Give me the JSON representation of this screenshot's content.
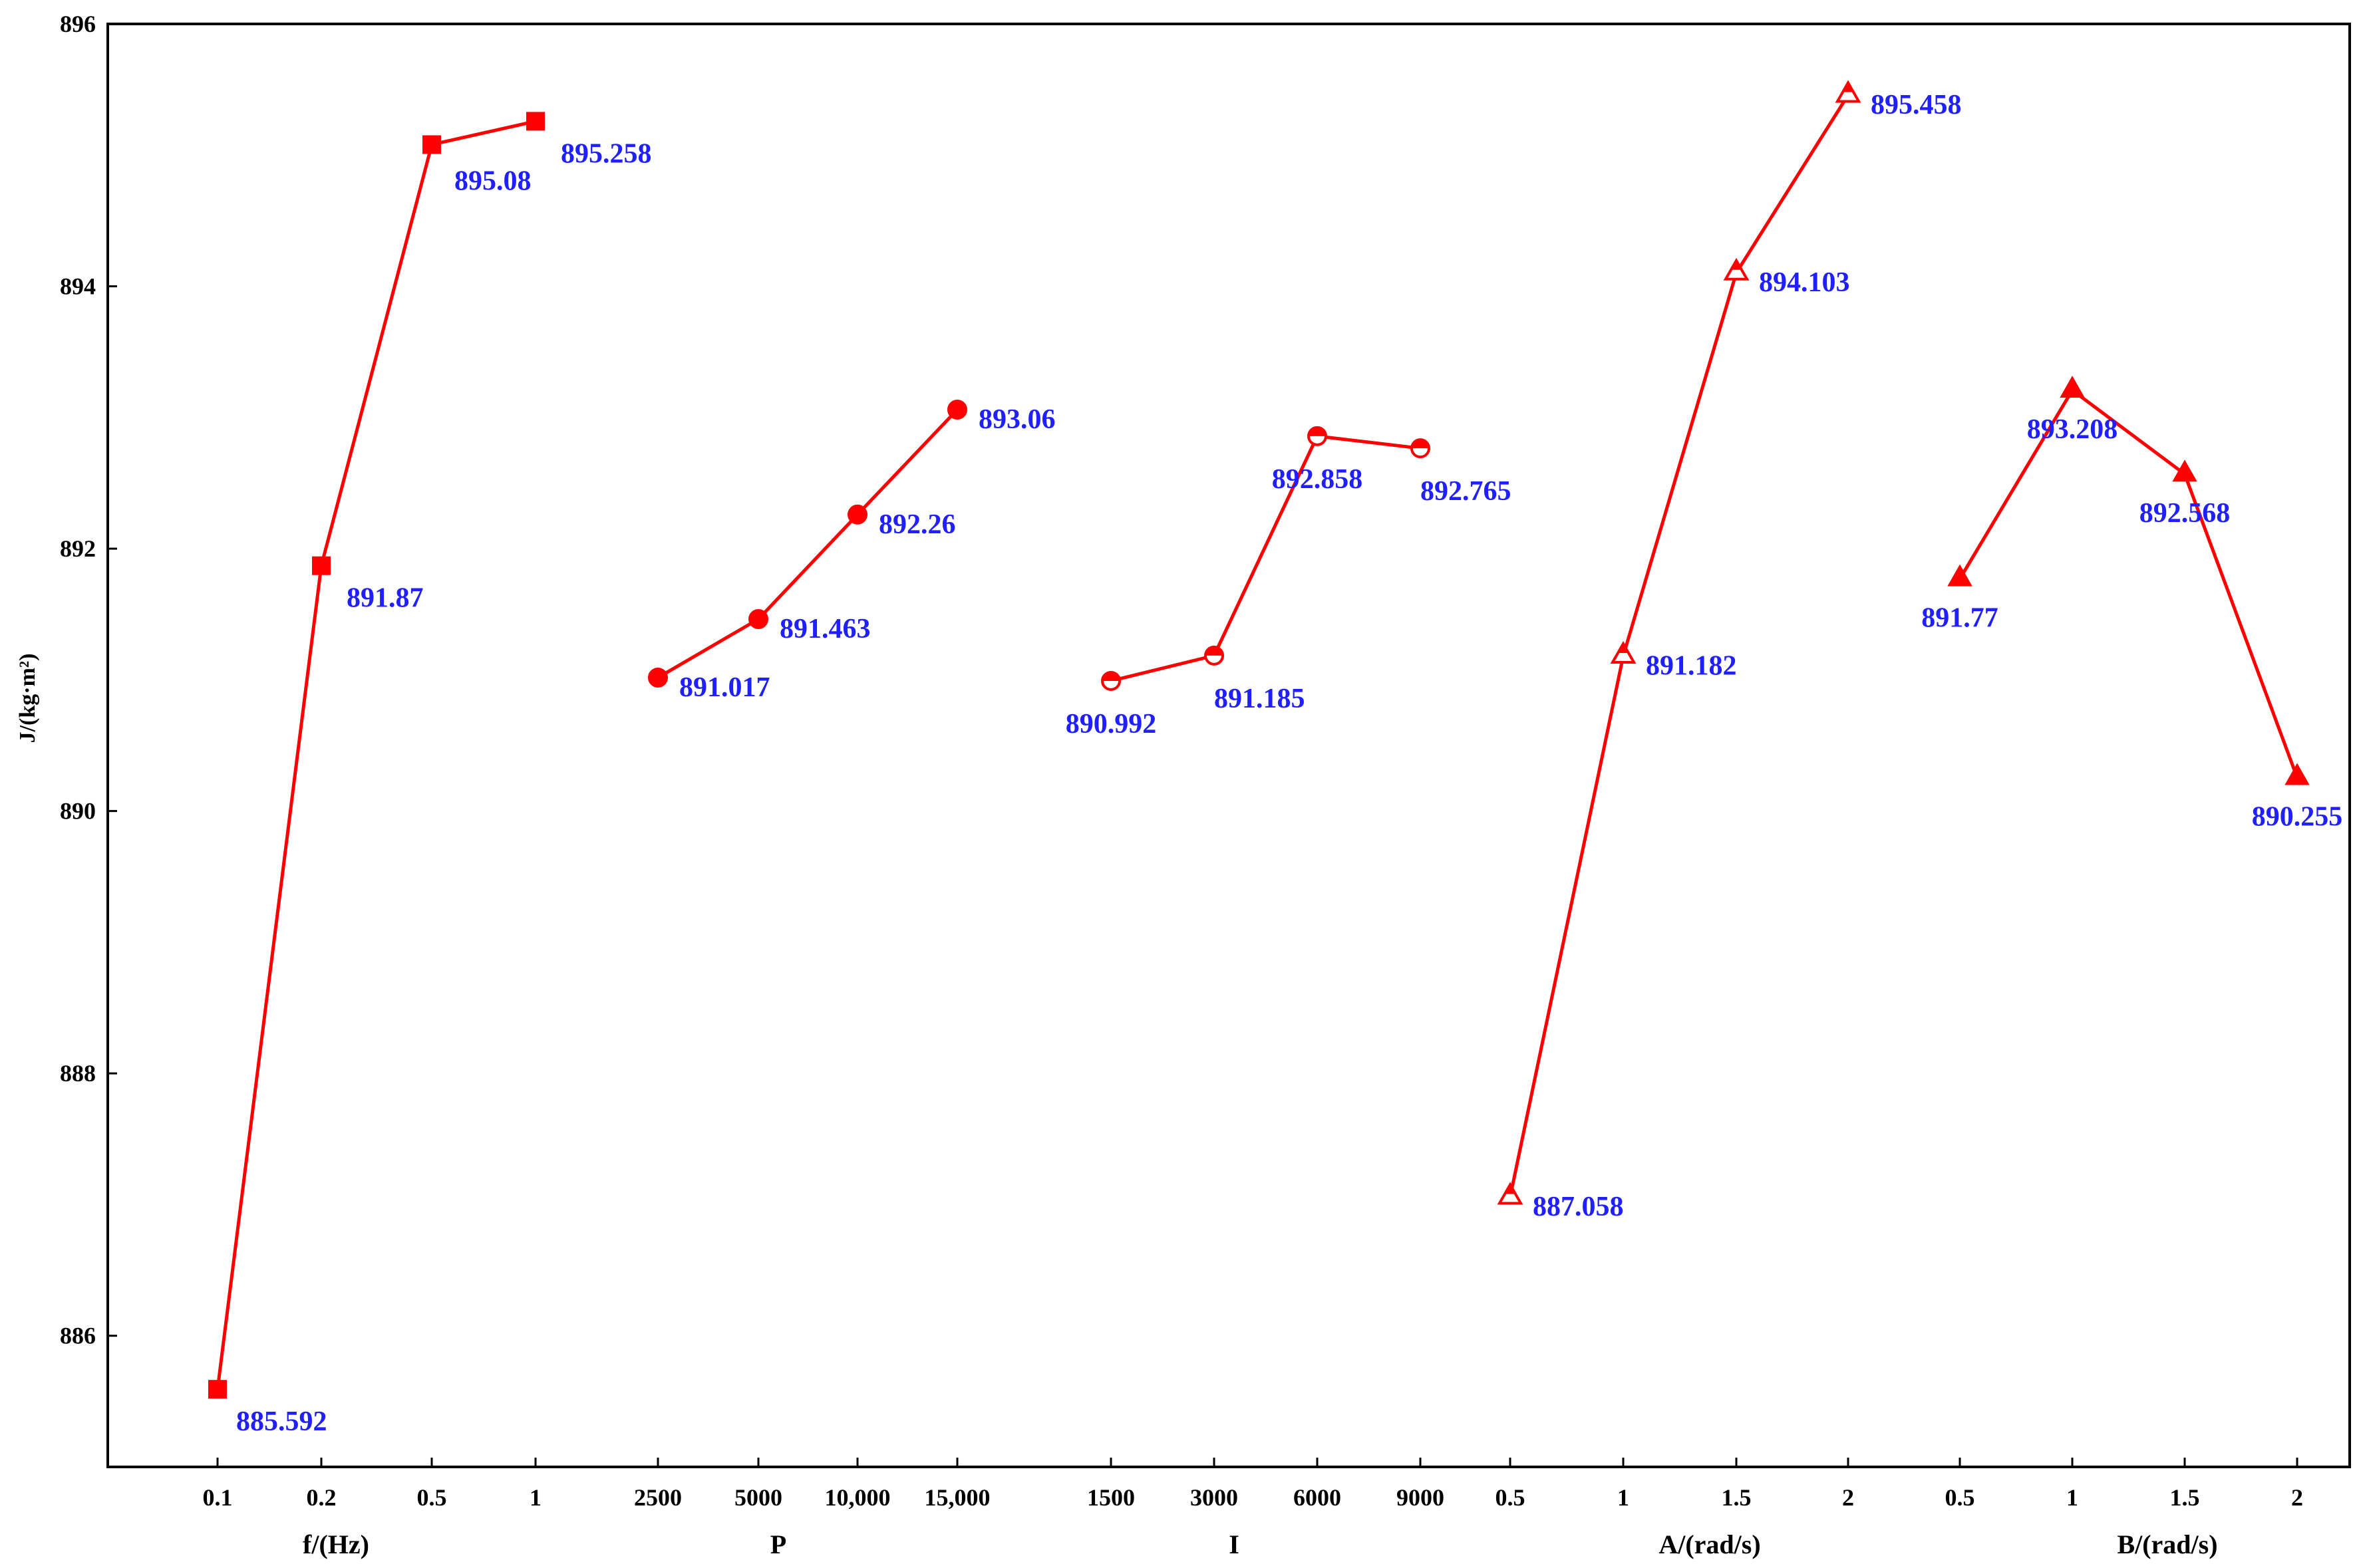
{
  "chart_data": {
    "type": "line",
    "ylabel": "J/(kg·m²)",
    "ylim": [
      885,
      896
    ],
    "yticks": [
      886,
      888,
      890,
      892,
      894,
      896
    ],
    "grid": false,
    "colors": {
      "line": "#ff0000",
      "label": "#1f1fff",
      "axis": "#000000"
    },
    "groups": [
      {
        "xlabel": "f/(Hz)",
        "marker": "filled-square",
        "categories": [
          "0.1",
          "0.2",
          "0.5",
          "1"
        ],
        "values": [
          885.592,
          891.87,
          895.08,
          895.258
        ],
        "labels": [
          "885.592",
          "891.87",
          "895.08",
          "895.258"
        ]
      },
      {
        "xlabel": "P",
        "marker": "filled-circle",
        "categories": [
          "2500",
          "5000",
          "10,000",
          "15,000"
        ],
        "values": [
          891.017,
          891.463,
          892.26,
          893.06
        ],
        "labels": [
          "891.017",
          "891.463",
          "892.26",
          "893.06"
        ]
      },
      {
        "xlabel": "I",
        "marker": "half-circle",
        "categories": [
          "1500",
          "3000",
          "6000",
          "9000"
        ],
        "values": [
          890.992,
          891.185,
          892.858,
          892.765
        ],
        "labels": [
          "890.992",
          "891.185",
          "892.858",
          "892.765"
        ]
      },
      {
        "xlabel": "A/(rad/s)",
        "marker": "half-triangle",
        "categories": [
          "0.5",
          "1",
          "1.5",
          "2"
        ],
        "values": [
          887.058,
          891.182,
          894.103,
          895.458
        ],
        "labels": [
          "887.058",
          "891.182",
          "894.103",
          "895.458"
        ]
      },
      {
        "xlabel": "B/(rad/s)",
        "marker": "filled-triangle",
        "categories": [
          "0.5",
          "1",
          "1.5",
          "2"
        ],
        "values": [
          891.77,
          893.208,
          892.568,
          890.255
        ],
        "labels": [
          "891.77",
          "893.208",
          "892.568",
          "890.255"
        ]
      }
    ]
  }
}
